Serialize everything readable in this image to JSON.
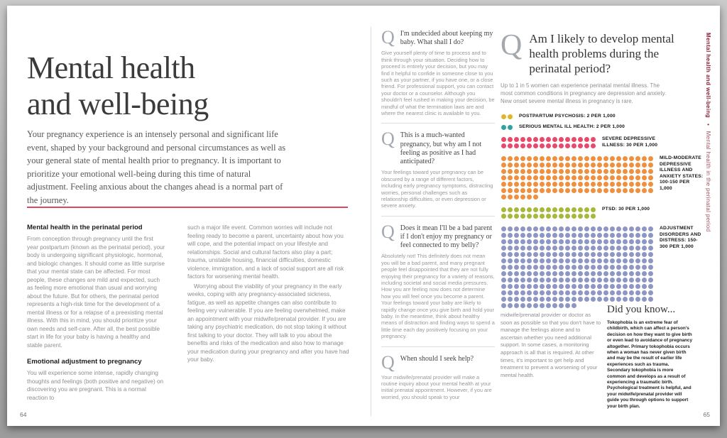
{
  "colors": {
    "accent_rule": "#dd4a5e",
    "sidebar_text": "#8e2134"
  },
  "left_page": {
    "page_number": "64",
    "title": "Mental health and well-being",
    "intro": "Your pregnancy experience is an intensely personal and significant life event, shaped by your background and personal circumstances as well as your general state of mental health prior to pregnancy. It is important to prioritize your emotional well-being during this time of natural adjustment. Feeling anxious about the changes ahead is a normal part of the journey.",
    "sections": [
      {
        "heading": "Mental health in the perinatal period",
        "body": "From conception through pregnancy until the first year postpartum (known as the perinatal period), your body is undergoing significant physiologic, hormonal, and biologic changes. It should come as little surprise that your mental state can be affected. For most people, these changes are mild and expected, such as feeling more emotional than usual and worrying about the future. But for others, the perinatal period represents a high-risk time for the development of a mental illness or for a relapse of a preexisting mental illness. With this in mind, you should prioritize your own needs and self-care. After all, the best possible start in life for your baby is having a healthy and stable parent."
      },
      {
        "heading": "Emotional adjustment to pregnancy",
        "body": "You will experience some intense, rapidly changing thoughts and feelings (both positive and negative) on discovering you are pregnant. This is a normal reaction to"
      }
    ],
    "column2": [
      "such a major life event. Common worries will include not feeling ready to become a parent, uncertainty about how you will cope, and the potential impact on your lifestyle and relationships. Social and cultural factors also play a part; trauma, unstable housing, financial difficulties, domestic violence, immigration, and a lack of social support are all risk factors for worsening mental health.",
      "Worrying about the viability of your pregnancy in the early weeks, coping with any pregnancy-associated sickness, fatigue, as well as appetite changes can also contribute to feeling very vulnerable. If you are feeling overwhelmed, make an appointment with your midwife/prenatal provider. If you are taking any psychiatric medication, do not stop taking it without first talking to your doctor. They will talk to you about the benefits and risks of the medication and also how to manage your medication during your pregnancy and after you have had your baby."
    ]
  },
  "qa_column": {
    "q_glyph": "Q",
    "items": [
      {
        "question": "I'm undecided about keeping my baby. What shall I do?",
        "answer": "Give yourself plenty of time to process and to think through your situation. Deciding how to proceed is entirely your decision, but you may find it helpful to confide in someone close to you such as your partner, if you have one, or a close friend. For professional support, you can contact your doctor or a counselor. Although you shouldn't feel rushed in making your decision, be mindful of what the termination laws are and where the nearest clinic is available to you."
      },
      {
        "question": "This is a much-wanted pregnancy, but why am I not feeling as positive as I had anticipated?",
        "answer": "Your feelings toward your pregnancy can be obscured by a range of different factors, including early pregnancy symptoms, distracting worries, personal challenges such as relationship difficulties, or even depression or severe anxiety."
      },
      {
        "question": "Does it mean I'll be a bad parent if I don't enjoy my pregnancy or feel connected to my belly?",
        "answer": "Absolutely not! This definitely does not mean you will be a bad parent, and many pregnant people feel disappointed that they are not fully enjoying their pregnancy for a variety of reasons, including societal and social media pressures. How you are feeling now does not determine how you will feel once you become a parent. Your feelings toward your baby are likely to rapidly change once you give birth and hold your baby. In the meantime, think about healthy means of distraction and finding ways to spend a little time each day positively focusing on your pregnancy."
      },
      {
        "question": "When should I seek help?",
        "answer": "Your midwife/prenatal provider will make a routine inquiry about your mental health at your initial prenatal appointment. However, if you are worried, you should speak to your"
      }
    ]
  },
  "right_page": {
    "page_number": "65",
    "q_glyph": "Q",
    "question": "Am I likely to develop mental health problems during the perinatal period?",
    "answer_intro": "Up to 1 in 5 women can experience perinatal mental illness. The most common conditions in pregnancy are depression and anxiety. New onset severe mental illness in pregnancy is rare.",
    "continuation": "midwife/prenatal provider or doctor as soon as possible so that you don't have to manage the feelings alone and to ascertain whether you need additional support. In some cases, a monitoring approach is all that is required. At other times, it's important to get help and treatment to prevent a worsening of your mental health.",
    "did_you_know": {
      "title": "Did you know...",
      "body": "Tokophobia is an extreme fear of childbirth, which can affect a person's decision on how they want to give birth or even lead to avoidance of pregnancy altogether. Primary tokophobia occurs when a woman has never given birth and may be the result of earlier life experiences such as trauma. Secondary tokophobia is more common and develops as a result of experiencing a traumatic birth. Psychological treatment is helpful, and your midwife/prenatal provider will guide you through options to support your birth plan."
    },
    "sidebar": {
      "chapter": "Mental health and well-being",
      "separator": "•",
      "section": "Mental health in the perinatal period"
    }
  },
  "chart_data": {
    "type": "dot-matrix",
    "unit": "per 1,000 pregnancies",
    "items": [
      {
        "label": "Postpartum psychosis: 2 per 1,000",
        "condition": "Postpartum psychosis",
        "rate_per_1000": "2",
        "dots": 2,
        "color": "#e0b52b"
      },
      {
        "label": "Serious mental ill health: 2 per 1,000",
        "condition": "Serious mental ill health",
        "rate_per_1000": "2",
        "dots": 2,
        "color": "#2fa49e"
      },
      {
        "label": "Severe depressive illness: 30 per 1,000",
        "condition": "Severe depressive illness",
        "rate_per_1000": "30",
        "dots": 30,
        "color": "#e74a6d"
      },
      {
        "label": "Mild-moderate depressive illness and anxiety states: 100-150 per 1,000",
        "condition": "Mild-moderate depressive illness and anxiety states",
        "rate_per_1000": "100-150",
        "dots": 150,
        "color": "#ee9040"
      },
      {
        "label": "PTSD: 30 per 1,000",
        "condition": "PTSD",
        "rate_per_1000": "30",
        "dots": 30,
        "color": "#a7b83a"
      },
      {
        "label": "Adjustment disorders and distress: 150-300 per 1,000",
        "condition": "Adjustment disorders and distress",
        "rate_per_1000": "150-300",
        "dots": 300,
        "color": "#8e96c5"
      }
    ]
  }
}
